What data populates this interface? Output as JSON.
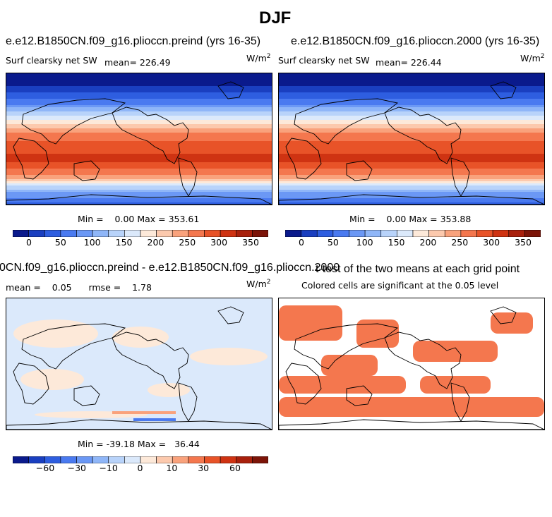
{
  "page_title": "DJF",
  "panels": {
    "p1": {
      "title": "e.e12.B1850CN.f09_g16.plioccn.preind (yrs 16-35)",
      "variable": "Surf clearsky net SW",
      "mean_text": "mean= 226.49",
      "units": "W/m",
      "units_exp": "2",
      "minmax_text": "Min =    0.00 Max = 353.61"
    },
    "p2": {
      "title": "e.e12.B1850CN.f09_g16.plioccn.2000 (yrs 16-35)",
      "variable": "Surf clearsky net SW",
      "mean_text": "mean= 226.44",
      "units": "W/m",
      "units_exp": "2",
      "minmax_text": "Min =    0.00 Max = 353.88"
    },
    "p3": {
      "title": "0CN.f09_g16.plioccn.preind - e.e12.B1850CN.f09_g16.plioccn.2000",
      "stats_text": "mean =    0.05      rmse =    1.78",
      "units": "W/m",
      "units_exp": "2",
      "minmax_text": "Min = -39.18 Max =   36.44"
    },
    "p4": {
      "title": "t-test of the two means at each grid point",
      "subtitle": "Colored cells are significant at the 0.05 level"
    }
  },
  "colorbars": {
    "abs": {
      "colors": [
        "#0a1a8c",
        "#1a3fc0",
        "#2e5ee0",
        "#4a7af0",
        "#6b98f5",
        "#8fb6f8",
        "#b8d3fa",
        "#dbe9fb",
        "#fde9d9",
        "#fcc9ad",
        "#f9a27c",
        "#f4774e",
        "#e85328",
        "#cf3312",
        "#a8200c",
        "#7c1408"
      ],
      "ticks": [
        "0",
        "50",
        "100",
        "150",
        "200",
        "250",
        "300",
        "350"
      ]
    },
    "diff": {
      "colors": [
        "#0a1a8c",
        "#1a3fc0",
        "#2e5ee0",
        "#4a7af0",
        "#6b98f5",
        "#8fb6f8",
        "#b8d3fa",
        "#dbe9fb",
        "#fde9d9",
        "#fcc9ad",
        "#f9a27c",
        "#f4774e",
        "#e85328",
        "#cf3312",
        "#a8200c",
        "#7c1408"
      ],
      "ticks": [
        "−60",
        "−30",
        "−10",
        "0",
        "10",
        "30",
        "60"
      ]
    }
  },
  "chart_data": [
    {
      "type": "heatmap",
      "title": "e.e12.B1850CN.f09_g16.plioccn.preind (yrs 16-35)",
      "variable": "Surf clearsky net SW",
      "units": "W/m2",
      "mean": 226.49,
      "min": 0.0,
      "max": 353.61,
      "colorbar_ticks": [
        0,
        50,
        100,
        150,
        200,
        250,
        300,
        350
      ],
      "latitude_profile": {
        "lat": [
          90,
          70,
          50,
          30,
          10,
          -10,
          -30,
          -50,
          -70,
          -90
        ],
        "value": [
          0,
          30,
          90,
          180,
          270,
          320,
          330,
          280,
          140,
          60
        ]
      }
    },
    {
      "type": "heatmap",
      "title": "e.e12.B1850CN.f09_g16.plioccn.2000 (yrs 16-35)",
      "variable": "Surf clearsky net SW",
      "units": "W/m2",
      "mean": 226.44,
      "min": 0.0,
      "max": 353.88,
      "colorbar_ticks": [
        0,
        50,
        100,
        150,
        200,
        250,
        300,
        350
      ],
      "latitude_profile": {
        "lat": [
          90,
          70,
          50,
          30,
          10,
          -10,
          -30,
          -50,
          -70,
          -90
        ],
        "value": [
          0,
          30,
          90,
          180,
          270,
          320,
          330,
          280,
          140,
          60
        ]
      }
    },
    {
      "type": "heatmap",
      "title": "0CN.f09_g16.plioccn.preind - e.e12.B1850CN.f09_g16.plioccn.2000",
      "units": "W/m2",
      "mean": 0.05,
      "rmse": 1.78,
      "min": -39.18,
      "max": 36.44,
      "colorbar_ticks": [
        -60,
        -30,
        -10,
        0,
        10,
        30,
        60
      ]
    },
    {
      "type": "heatmap",
      "title": "t-test of the two means at each grid point",
      "subtitle": "Colored cells are significant at the 0.05 level",
      "significance_level": 0.05
    }
  ]
}
